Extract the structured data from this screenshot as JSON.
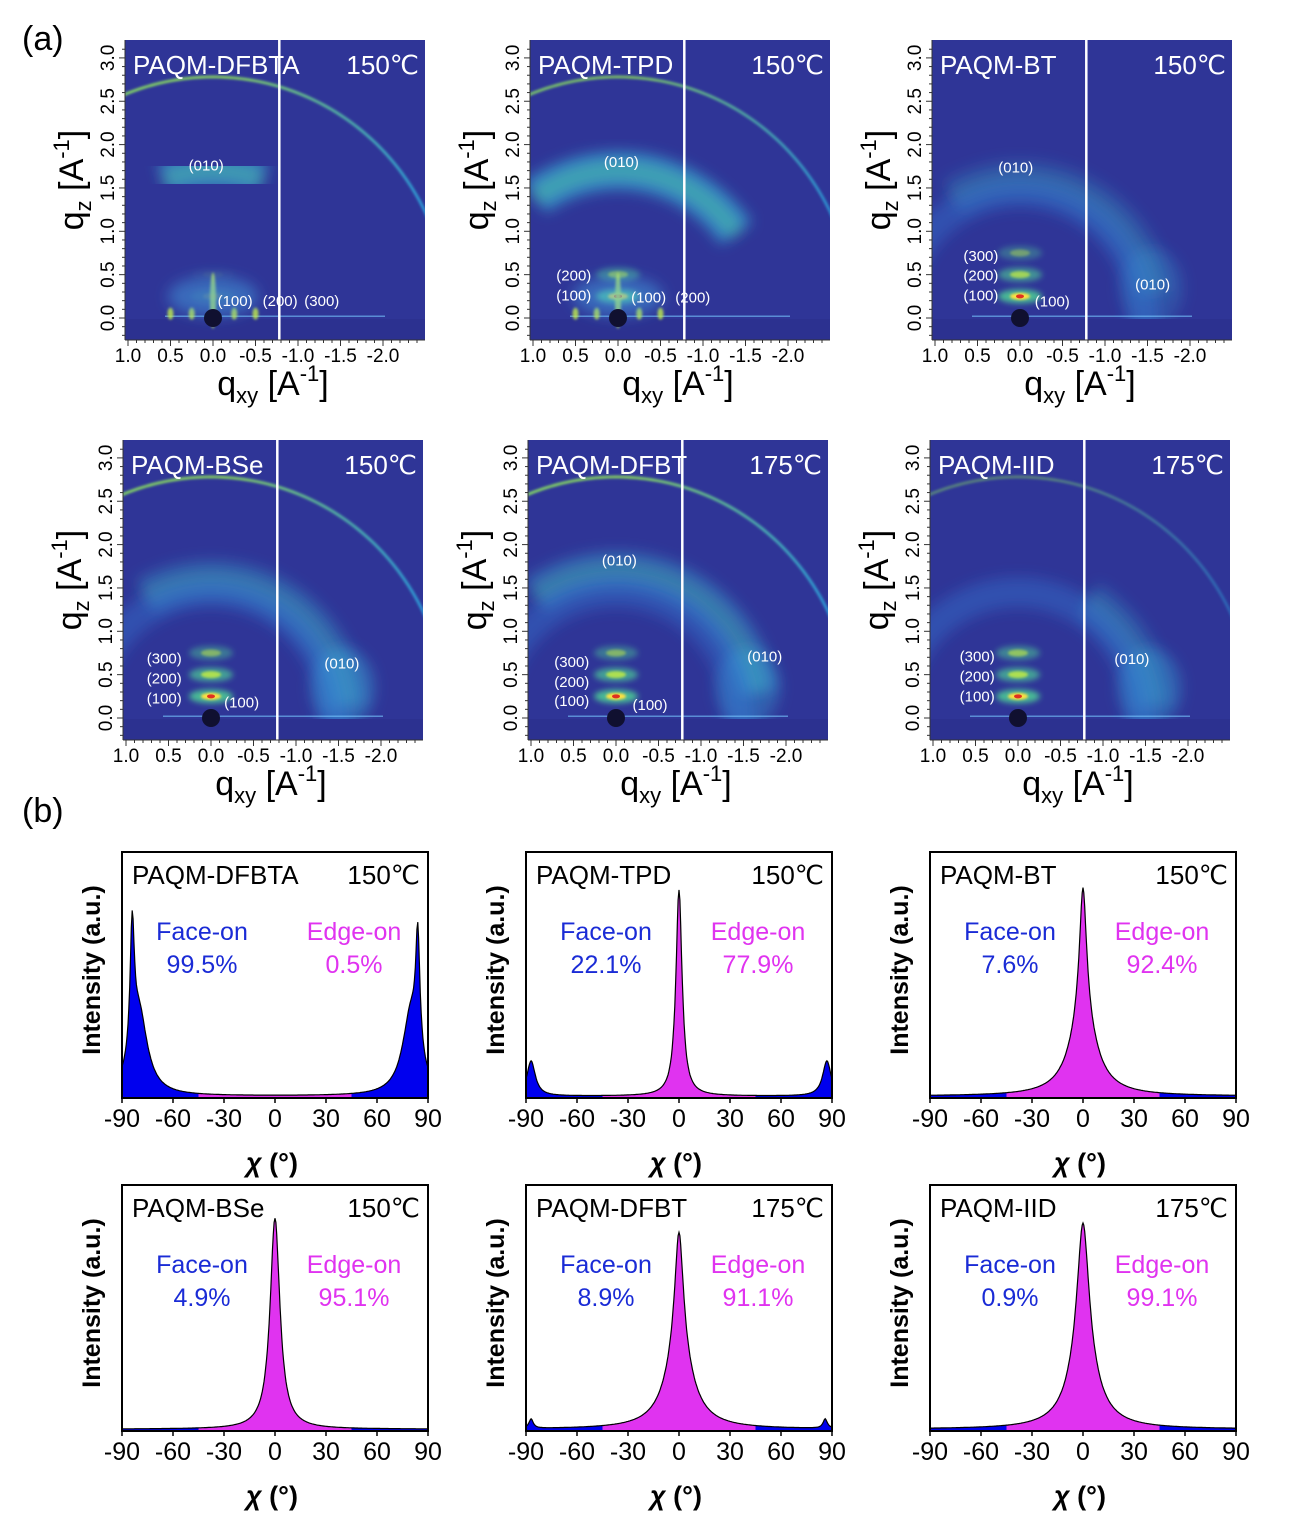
{
  "panel_labels": {
    "a": "(a)",
    "b": "(b)"
  },
  "giwaxs_axes": {
    "qz_label": "q",
    "qz_sub": "z",
    "qxy_label": "q",
    "qxy_sub": "xy",
    "unit_open": " [A",
    "unit_sup": "-1",
    "unit_close": "]",
    "qz_ticks": [
      "0.0",
      "0.5",
      "1.0",
      "1.5",
      "2.0",
      "2.5",
      "3.0"
    ],
    "qxy_ticks": [
      "1.0",
      "0.5",
      "0.0",
      "-0.5",
      "-1.0",
      "-1.5",
      "-2.0"
    ]
  },
  "pole_axes": {
    "ylabel": "Intensity (a.u.)",
    "xlabel_symbol": "χ",
    "xlabel_unit": " (°)",
    "x_ticks": [
      "-90",
      "-60",
      "-30",
      "0",
      "30",
      "60",
      "90"
    ],
    "face_label": "Face-on",
    "edge_label": "Edge-on"
  },
  "colors": {
    "background": "#2f3597",
    "face_on": "#0000ee",
    "edge_on": "#e033f0",
    "face_text": "#1a2bd6",
    "edge_text": "#e033f0"
  },
  "chart_data": [
    {
      "type": "heatmap",
      "title": "PAQM-DFBTA",
      "temperature": "150℃",
      "xlabel": "qxy [A-1]",
      "ylabel": "qz [A-1]",
      "xlim": [
        1.0,
        -2.5
      ],
      "ylim": [
        -0.25,
        3.2
      ],
      "ring": 1.0,
      "pi_arc": {
        "q": 1.7,
        "from": 70,
        "to": 110,
        "intensity": 0.9
      },
      "inplane_010": 0,
      "lamellar": [
        0.15,
        0.05,
        0.0
      ],
      "inplane_lamellar": true,
      "labels": [
        {
          "text": "(010)",
          "qxy": 0.08,
          "qz": 1.7
        },
        {
          "text": "(100)",
          "qxy": -0.26,
          "qz": 0.14
        },
        {
          "text": "(200)",
          "qxy": -0.79,
          "qz": 0.14
        },
        {
          "text": "(300)",
          "qxy": -1.28,
          "qz": 0.14
        }
      ]
    },
    {
      "type": "heatmap",
      "title": "PAQM-TPD",
      "temperature": "150℃",
      "xlabel": "qxy [A-1]",
      "ylabel": "qz [A-1]",
      "xlim": [
        1.0,
        -2.5
      ],
      "ylim": [
        -0.25,
        3.2
      ],
      "ring": 0.9,
      "pi_arc": {
        "q": 1.7,
        "from": 35,
        "to": 125,
        "intensity": 1.0
      },
      "inplane_010": 0,
      "lamellar": [
        0.9,
        0.5,
        0.0
      ],
      "inplane_lamellar": true,
      "labels": [
        {
          "text": "(010)",
          "qxy": -0.04,
          "qz": 1.74
        },
        {
          "text": "(200)",
          "qxy": 0.52,
          "qz": 0.43
        },
        {
          "text": "(100)",
          "qxy": 0.52,
          "qz": 0.2
        },
        {
          "text": "(100)",
          "qxy": -0.36,
          "qz": 0.18
        },
        {
          "text": "(200)",
          "qxy": -0.88,
          "qz": 0.18
        }
      ]
    },
    {
      "type": "heatmap",
      "title": "PAQM-BT",
      "temperature": "150℃",
      "xlabel": "qxy [A-1]",
      "ylabel": "qz [A-1]",
      "xlim": [
        1.0,
        -2.5
      ],
      "ylim": [
        -0.25,
        3.2
      ],
      "ring": 0.0,
      "pi_arc": {
        "q": 1.6,
        "from": 10,
        "to": 120,
        "intensity": 0.35
      },
      "inplane_010": 0.4,
      "lamellar": [
        1.0,
        0.7,
        0.4
      ],
      "inplane_lamellar": false,
      "labels": [
        {
          "text": "(010)",
          "qxy": 0.05,
          "qz": 1.68
        },
        {
          "text": "(300)",
          "qxy": 0.46,
          "qz": 0.66
        },
        {
          "text": "(200)",
          "qxy": 0.46,
          "qz": 0.43
        },
        {
          "text": "(100)",
          "qxy": 0.46,
          "qz": 0.2
        },
        {
          "text": "(100)",
          "qxy": -0.38,
          "qz": 0.13
        },
        {
          "text": "(010)",
          "qxy": -1.56,
          "qz": 0.33
        }
      ]
    },
    {
      "type": "heatmap",
      "title": "PAQM-BSe",
      "temperature": "150℃",
      "xlabel": "qxy [A-1]",
      "ylabel": "qz [A-1]",
      "xlim": [
        1.0,
        -2.5
      ],
      "ylim": [
        -0.25,
        3.2
      ],
      "ring": 1.0,
      "pi_arc": {
        "q": 1.6,
        "from": 5,
        "to": 120,
        "intensity": 0.5
      },
      "inplane_010": 0.7,
      "lamellar": [
        1.0,
        0.8,
        0.5
      ],
      "inplane_lamellar": false,
      "labels": [
        {
          "text": "(300)",
          "qxy": 0.55,
          "qz": 0.63
        },
        {
          "text": "(200)",
          "qxy": 0.55,
          "qz": 0.4
        },
        {
          "text": "(100)",
          "qxy": 0.55,
          "qz": 0.17
        },
        {
          "text": "(100)",
          "qxy": -0.36,
          "qz": 0.12
        },
        {
          "text": "(010)",
          "qxy": -1.54,
          "qz": 0.57
        }
      ]
    },
    {
      "type": "heatmap",
      "title": "PAQM-DFBT",
      "temperature": "175℃",
      "xlabel": "qxy [A-1]",
      "ylabel": "qz [A-1]",
      "xlim": [
        1.0,
        -2.5
      ],
      "ylim": [
        -0.25,
        3.2
      ],
      "ring": 1.0,
      "pi_arc": {
        "q": 1.7,
        "from": 10,
        "to": 125,
        "intensity": 0.6
      },
      "inplane_010": 0.6,
      "lamellar": [
        1.0,
        0.8,
        0.5
      ],
      "inplane_lamellar": false,
      "labels": [
        {
          "text": "(010)",
          "qxy": -0.04,
          "qz": 1.76
        },
        {
          "text": "(300)",
          "qxy": 0.52,
          "qz": 0.59
        },
        {
          "text": "(200)",
          "qxy": 0.52,
          "qz": 0.36
        },
        {
          "text": "(100)",
          "qxy": 0.52,
          "qz": 0.14
        },
        {
          "text": "(100)",
          "qxy": -0.4,
          "qz": 0.09
        },
        {
          "text": "(010)",
          "qxy": -1.75,
          "qz": 0.65
        }
      ]
    },
    {
      "type": "heatmap",
      "title": "PAQM-IID",
      "temperature": "175℃",
      "xlabel": "qxy [A-1]",
      "ylabel": "qz [A-1]",
      "xlim": [
        1.0,
        -2.5
      ],
      "ylim": [
        -0.25,
        3.2
      ],
      "ring": 0.5,
      "pi_arc": {
        "q": 1.6,
        "from": 5,
        "to": 60,
        "intensity": 0.4
      },
      "inplane_010": 0.6,
      "lamellar": [
        1.0,
        0.8,
        0.6
      ],
      "inplane_lamellar": false,
      "labels": [
        {
          "text": "(300)",
          "qxy": 0.48,
          "qz": 0.65
        },
        {
          "text": "(200)",
          "qxy": 0.48,
          "qz": 0.42
        },
        {
          "text": "(100)",
          "qxy": 0.48,
          "qz": 0.19
        },
        {
          "text": "(010)",
          "qxy": -1.34,
          "qz": 0.62
        }
      ]
    },
    {
      "type": "area",
      "title": "PAQM-DFBTA",
      "temperature": "150℃",
      "xlabel": "χ (°)",
      "ylabel": "Intensity (a.u.)",
      "xlim": [
        -90,
        90
      ],
      "ylim": [
        0,
        1.05
      ],
      "face_on": "99.5%",
      "edge_on": "0.5%",
      "peaks": [
        {
          "center": -84,
          "width": 1.5,
          "height": 0.55
        },
        {
          "center": -80,
          "width": 6,
          "height": 0.35
        },
        {
          "center": 84,
          "width": 1.5,
          "height": 0.5
        },
        {
          "center": 80,
          "width": 6,
          "height": 0.35
        }
      ]
    },
    {
      "type": "area",
      "title": "PAQM-TPD",
      "temperature": "150℃",
      "xlabel": "χ (°)",
      "ylabel": "Intensity (a.u.)",
      "xlim": [
        -90,
        90
      ],
      "ylim": [
        0,
        1.05
      ],
      "face_on": "22.1%",
      "edge_on": "77.9%",
      "peaks": [
        {
          "center": 0,
          "width": 2.2,
          "height": 0.88
        },
        {
          "center": -87,
          "width": 3,
          "height": 0.15
        },
        {
          "center": 87,
          "width": 3,
          "height": 0.15
        }
      ]
    },
    {
      "type": "area",
      "title": "PAQM-BT",
      "temperature": "150℃",
      "xlabel": "χ (°)",
      "ylabel": "Intensity (a.u.)",
      "xlim": [
        -90,
        90
      ],
      "ylim": [
        0,
        1.05
      ],
      "face_on": "7.6%",
      "edge_on": "92.4%",
      "peaks": [
        {
          "center": 0,
          "width": 2.5,
          "height": 0.55
        },
        {
          "center": 0,
          "width": 9,
          "height": 0.34
        }
      ]
    },
    {
      "type": "area",
      "title": "PAQM-BSe",
      "temperature": "150℃",
      "xlabel": "χ (°)",
      "ylabel": "Intensity (a.u.)",
      "xlim": [
        -90,
        90
      ],
      "ylim": [
        0,
        1.05
      ],
      "face_on": "4.9%",
      "edge_on": "95.1%",
      "peaks": [
        {
          "center": 0,
          "width": 3.5,
          "height": 0.9
        }
      ]
    },
    {
      "type": "area",
      "title": "PAQM-DFBT",
      "temperature": "175℃",
      "xlabel": "χ (°)",
      "ylabel": "Intensity (a.u.)",
      "xlim": [
        -90,
        90
      ],
      "ylim": [
        0,
        1.05
      ],
      "face_on": "8.9%",
      "edge_on": "91.1%",
      "peaks": [
        {
          "center": 0,
          "width": 3,
          "height": 0.5
        },
        {
          "center": 0,
          "width": 9,
          "height": 0.34
        },
        {
          "center": -87,
          "width": 1.5,
          "height": 0.04
        },
        {
          "center": 86,
          "width": 1.5,
          "height": 0.04
        }
      ]
    },
    {
      "type": "area",
      "title": "PAQM-IID",
      "temperature": "175℃",
      "xlabel": "χ (°)",
      "ylabel": "Intensity (a.u.)",
      "xlim": [
        -90,
        90
      ],
      "ylim": [
        0,
        1.05
      ],
      "face_on": "0.9%",
      "edge_on": "99.1%",
      "peaks": [
        {
          "center": 0,
          "width": 4,
          "height": 0.55
        },
        {
          "center": 0,
          "width": 9,
          "height": 0.33
        }
      ]
    }
  ]
}
